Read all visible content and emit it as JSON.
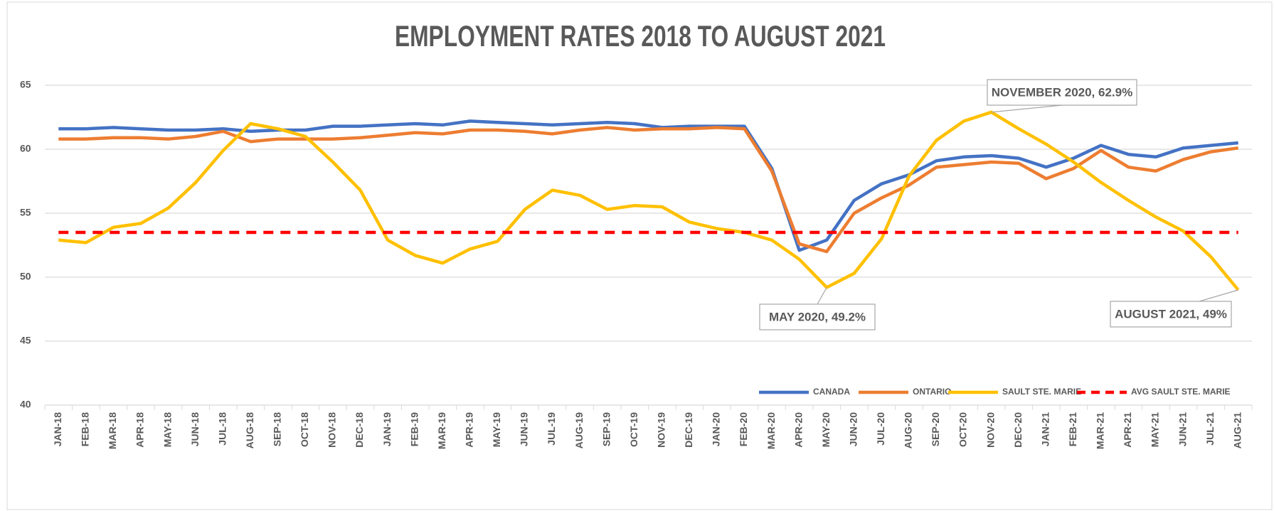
{
  "chart_data": {
    "type": "line",
    "title": "EMPLOYMENT RATES 2018 TO AUGUST 2021",
    "categories": [
      "JAN-18",
      "FEB-18",
      "MAR-18",
      "APR-18",
      "MAY-18",
      "JUN-18",
      "JUL-18",
      "AUG-18",
      "SEP-18",
      "OCT-18",
      "NOV-18",
      "DEC-18",
      "JAN-19",
      "FEB-19",
      "MAR-19",
      "APR-19",
      "MAY-19",
      "JUN-19",
      "JUL-19",
      "AUG-19",
      "SEP-19",
      "OCT-19",
      "NOV-19",
      "DEC-19",
      "JAN-20",
      "FEB-20",
      "MAR-20",
      "APR-20",
      "MAY-20",
      "JUN-20",
      "JUL-20",
      "AUG-20",
      "SEP-20",
      "OCT-20",
      "NOV-20",
      "DEC-20",
      "JAN-21",
      "FEB-21",
      "MAR-21",
      "APR-21",
      "MAY-21",
      "JUN-21",
      "JUL-21",
      "AUG-21"
    ],
    "series": [
      {
        "name": "CANADA",
        "color": "#4472c4",
        "values": [
          61.6,
          61.6,
          61.7,
          61.6,
          61.5,
          61.5,
          61.6,
          61.4,
          61.5,
          61.5,
          61.8,
          61.8,
          61.9,
          62.0,
          61.9,
          62.2,
          62.1,
          62.0,
          61.9,
          62.0,
          62.1,
          62.0,
          61.7,
          61.8,
          61.8,
          61.8,
          58.5,
          52.1,
          52.9,
          56.0,
          57.3,
          58.0,
          59.1,
          59.4,
          59.5,
          59.3,
          58.6,
          59.3,
          60.3,
          59.6,
          59.4,
          60.1,
          60.3,
          60.5
        ]
      },
      {
        "name": "ONTARIO",
        "color": "#ed7d31",
        "values": [
          60.8,
          60.8,
          60.9,
          60.9,
          60.8,
          61.0,
          61.4,
          60.6,
          60.8,
          60.8,
          60.8,
          60.9,
          61.1,
          61.3,
          61.2,
          61.5,
          61.5,
          61.4,
          61.2,
          61.5,
          61.7,
          61.5,
          61.6,
          61.6,
          61.7,
          61.6,
          58.3,
          52.6,
          52.0,
          55.0,
          56.2,
          57.2,
          58.6,
          58.8,
          59.0,
          58.9,
          57.7,
          58.5,
          59.9,
          58.6,
          58.3,
          59.2,
          59.8,
          60.1
        ]
      },
      {
        "name": "SAULT STE. MARIE",
        "color": "#ffc000",
        "values": [
          52.9,
          52.7,
          53.9,
          54.2,
          55.4,
          57.4,
          59.9,
          62.0,
          61.6,
          61.0,
          59.0,
          56.8,
          52.9,
          51.7,
          51.1,
          52.2,
          52.8,
          55.3,
          56.8,
          56.4,
          55.3,
          55.6,
          55.5,
          54.3,
          53.8,
          53.5,
          52.9,
          51.4,
          49.2,
          50.3,
          53.0,
          57.9,
          60.7,
          62.2,
          62.9,
          61.6,
          60.4,
          59.0,
          57.4,
          56.0,
          54.7,
          53.6,
          51.6,
          49.0
        ]
      },
      {
        "name": "AVG SAULT STE. MARIE",
        "color": "#ff0000",
        "dashed": true,
        "values": [
          53.5,
          53.5,
          53.5,
          53.5,
          53.5,
          53.5,
          53.5,
          53.5,
          53.5,
          53.5,
          53.5,
          53.5,
          53.5,
          53.5,
          53.5,
          53.5,
          53.5,
          53.5,
          53.5,
          53.5,
          53.5,
          53.5,
          53.5,
          53.5,
          53.5,
          53.5,
          53.5,
          53.5,
          53.5,
          53.5,
          53.5,
          53.5,
          53.5,
          53.5,
          53.5,
          53.5,
          53.5,
          53.5,
          53.5,
          53.5,
          53.5,
          53.5,
          53.5,
          53.5
        ]
      }
    ],
    "ylim": [
      40,
      65
    ],
    "yticks": [
      40,
      45,
      50,
      55,
      60,
      65
    ],
    "grid": true,
    "legend": "bottom-right",
    "annotations": [
      {
        "text": "NOVEMBER 2020, 62.9%"
      },
      {
        "text": "MAY 2020, 49.2%"
      },
      {
        "text": "AUGUST 2021, 49%"
      }
    ]
  }
}
